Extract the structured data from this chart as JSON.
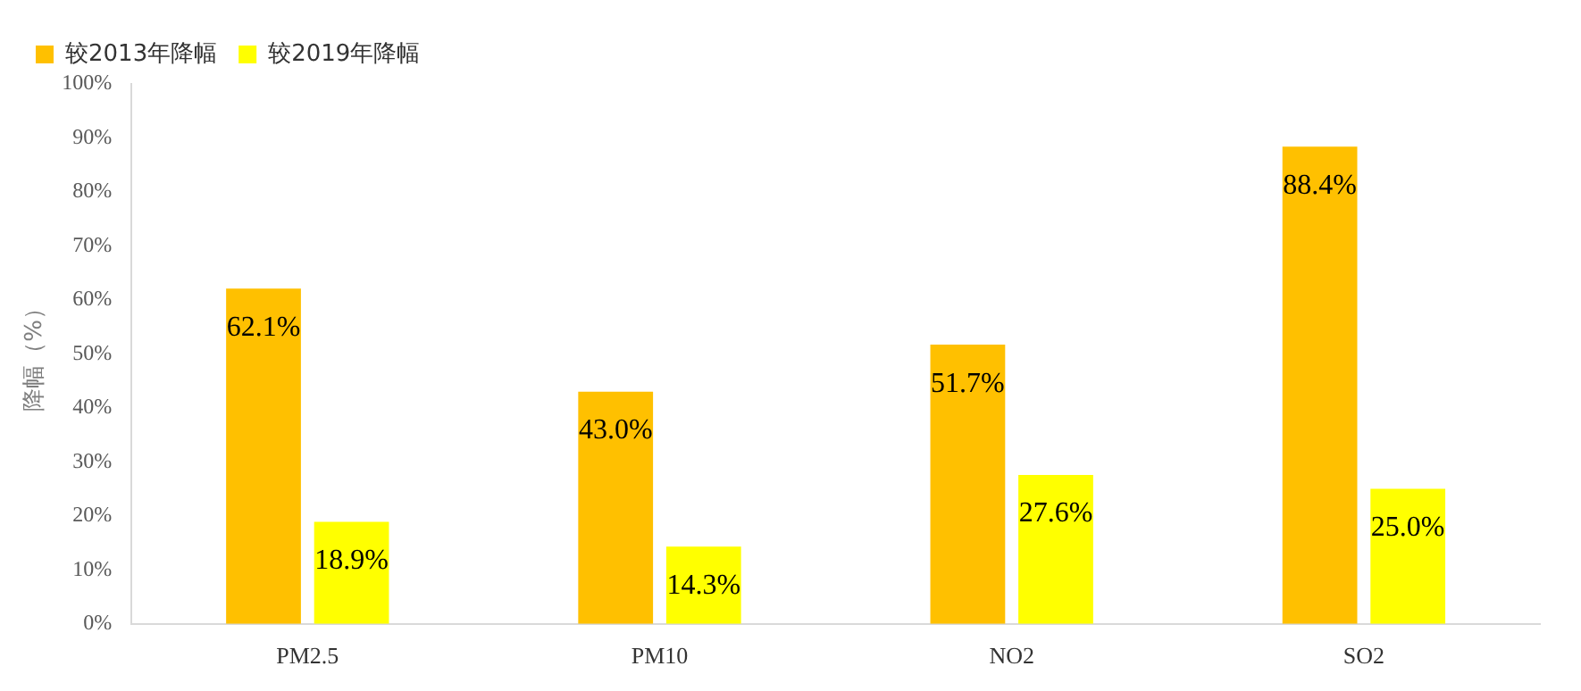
{
  "chart_data": {
    "type": "bar",
    "ylabel": "降幅（%）",
    "categories": [
      "PM2.5",
      "PM10",
      "NO2",
      "SO2"
    ],
    "series": [
      {
        "name": "较2013年降幅",
        "color": "#ffc000",
        "values": [
          62.1,
          43.0,
          51.7,
          88.4
        ],
        "value_labels": [
          "62.1%",
          "43.0%",
          "51.7%",
          "88.4%"
        ]
      },
      {
        "name": "较2019年降幅",
        "color": "#ffff00",
        "values": [
          18.9,
          14.3,
          27.6,
          25.0
        ],
        "value_labels": [
          "18.9%",
          "14.3%",
          "27.6%",
          "25.0%"
        ]
      }
    ],
    "ylim": [
      0,
      100
    ],
    "yticks": [
      {
        "value": 0,
        "label": "0%"
      },
      {
        "value": 10,
        "label": "10%"
      },
      {
        "value": 20,
        "label": "20%"
      },
      {
        "value": 30,
        "label": "30%"
      },
      {
        "value": 40,
        "label": "40%"
      },
      {
        "value": 50,
        "label": "50%"
      },
      {
        "value": 60,
        "label": "60%"
      },
      {
        "value": 70,
        "label": "70%"
      },
      {
        "value": 80,
        "label": "80%"
      },
      {
        "value": 90,
        "label": "90%"
      },
      {
        "value": 100,
        "label": "100%"
      }
    ],
    "grid": false,
    "legend": "top left"
  }
}
